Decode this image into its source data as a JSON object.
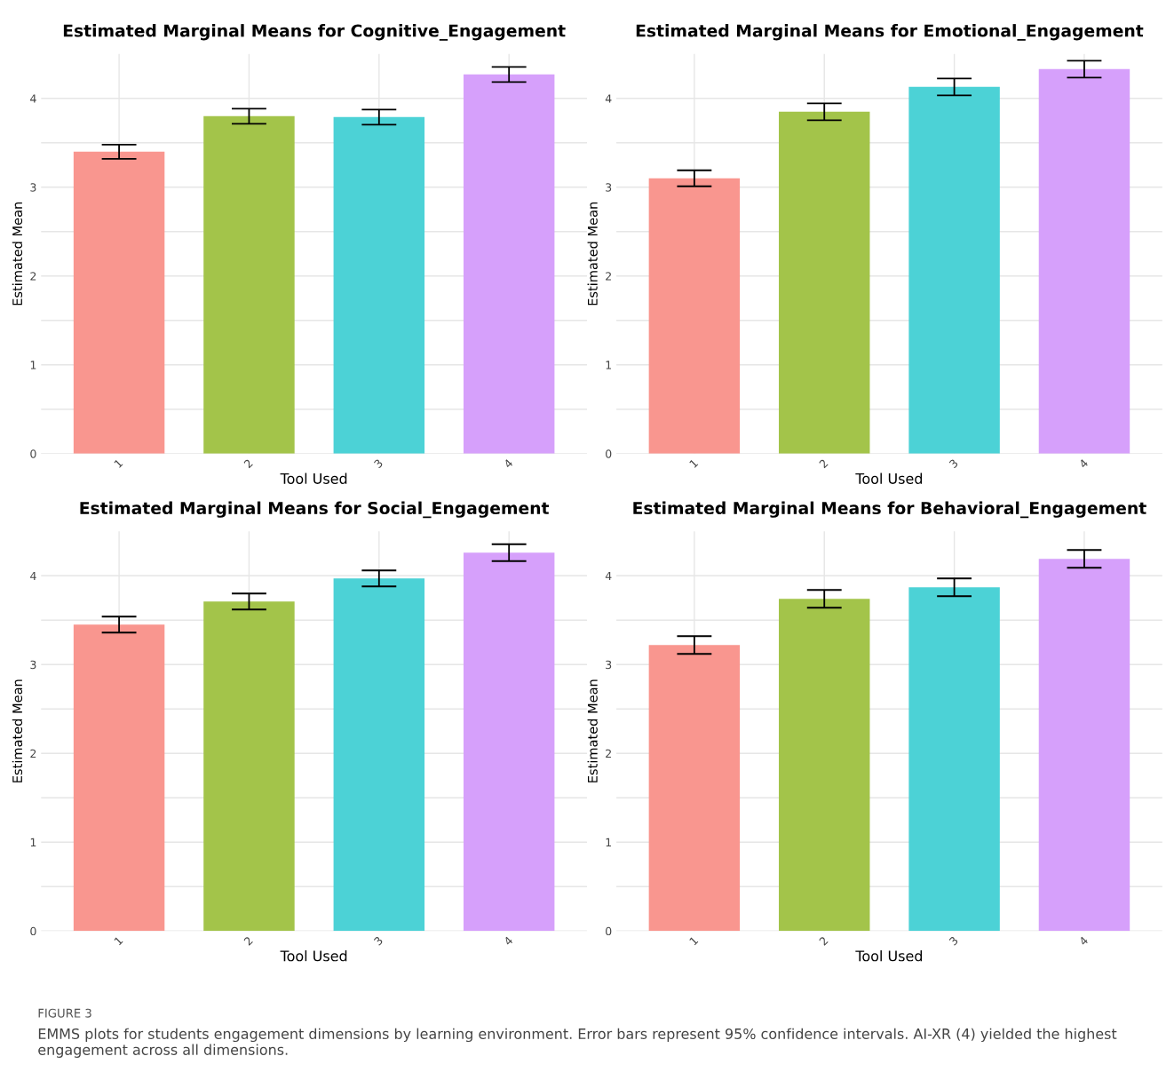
{
  "chart_data": [
    {
      "type": "bar",
      "title": "Estimated Marginal Means for Cognitive_Engagement",
      "xlabel": "Tool Used",
      "ylabel": "Estimated Mean",
      "categories": [
        "1",
        "2",
        "3",
        "4"
      ],
      "values": [
        3.4,
        3.8,
        3.79,
        4.27
      ],
      "errors": [
        0.08,
        0.085,
        0.085,
        0.085
      ],
      "colors": [
        "#f9968f",
        "#a3c44a",
        "#4cd2d6",
        "#d6a0fb"
      ],
      "ylim": [
        0,
        4.5
      ],
      "yticks": [
        0,
        {
          "value": 0.5,
          "label": null
        },
        1,
        {
          "value": 1.5,
          "label": null
        },
        2,
        {
          "value": 2.5,
          "label": null
        },
        3,
        {
          "value": 3.5,
          "label": null
        },
        4
      ],
      "grid": true
    },
    {
      "type": "bar",
      "title": "Estimated Marginal Means for Emotional_Engagement",
      "xlabel": "Tool Used",
      "ylabel": "Estimated Mean",
      "categories": [
        "1",
        "2",
        "3",
        "4"
      ],
      "values": [
        3.1,
        3.85,
        4.13,
        4.33
      ],
      "errors": [
        0.09,
        0.095,
        0.095,
        0.095
      ],
      "colors": [
        "#f9968f",
        "#a3c44a",
        "#4cd2d6",
        "#d6a0fb"
      ],
      "ylim": [
        0,
        4.5
      ],
      "yticks": [
        0,
        {
          "value": 0.5,
          "label": null
        },
        1,
        {
          "value": 1.5,
          "label": null
        },
        2,
        {
          "value": 2.5,
          "label": null
        },
        3,
        {
          "value": 3.5,
          "label": null
        },
        4
      ],
      "grid": true
    },
    {
      "type": "bar",
      "title": "Estimated Marginal Means for Social_Engagement",
      "xlabel": "Tool Used",
      "ylabel": "Estimated Mean",
      "categories": [
        "1",
        "2",
        "3",
        "4"
      ],
      "values": [
        3.45,
        3.71,
        3.97,
        4.26
      ],
      "errors": [
        0.09,
        0.09,
        0.09,
        0.095
      ],
      "colors": [
        "#f9968f",
        "#a3c44a",
        "#4cd2d6",
        "#d6a0fb"
      ],
      "ylim": [
        0,
        4.5
      ],
      "yticks": [
        0,
        {
          "value": 0.5,
          "label": null
        },
        1,
        {
          "value": 1.5,
          "label": null
        },
        2,
        {
          "value": 2.5,
          "label": null
        },
        3,
        {
          "value": 3.5,
          "label": null
        },
        4
      ],
      "grid": true
    },
    {
      "type": "bar",
      "title": "Estimated Marginal Means for Behavioral_Engagement",
      "xlabel": "Tool Used",
      "ylabel": "Estimated Mean",
      "categories": [
        "1",
        "2",
        "3",
        "4"
      ],
      "values": [
        3.22,
        3.74,
        3.87,
        4.19
      ],
      "errors": [
        0.1,
        0.1,
        0.1,
        0.1
      ],
      "colors": [
        "#f9968f",
        "#a3c44a",
        "#4cd2d6",
        "#d6a0fb"
      ],
      "ylim": [
        0,
        4.5
      ],
      "yticks": [
        0,
        {
          "value": 0.5,
          "label": null
        },
        1,
        {
          "value": 1.5,
          "label": null
        },
        2,
        {
          "value": 2.5,
          "label": null
        },
        3,
        {
          "value": 3.5,
          "label": null
        },
        4
      ],
      "grid": true,
      "annotations": [
        "FIGURE 3",
        "EMMS plots for students engagement dimensions by learning environment. Error bars represent 95% confidence intervals. AI-XR (4) yielded the highest engagement across all dimensions."
      ]
    }
  ]
}
